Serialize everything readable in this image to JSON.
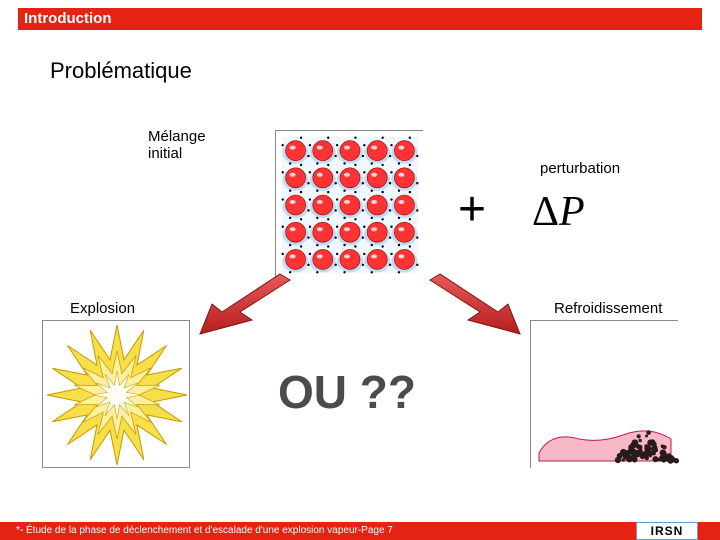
{
  "header": {
    "title": "Introduction"
  },
  "section": {
    "title": "Problématique"
  },
  "labels": {
    "mix": "Mélange\ninitial",
    "perturbation": "perturbation",
    "explosion": "Explosion",
    "cooling": "Refroidissement"
  },
  "symbols": {
    "plus": "+",
    "deltaP": "ΔP"
  },
  "center": {
    "text": "OU ??"
  },
  "footer": {
    "text": "*- Étude de la phase de déclenchement et d'escalade d'une explosion vapeur-Page 7",
    "logo": "IRSN"
  },
  "colors": {
    "accent": "#e42313",
    "explosion_fill": "#f7df4a",
    "explosion_stroke": "#c49a00",
    "ball_fill": "#ff3333",
    "ball_shine": "#ffffff",
    "water_fill": "#bfe0ff",
    "cooling_pink": "#f7b8c7",
    "cooling_dark": "#2b1a1a",
    "arrow_fill": "#d12a2a",
    "arrow_stroke": "#7a1a1a"
  },
  "mix": {
    "rows": 5,
    "cols": 5,
    "ball_r": 10,
    "dot_r": 1.2,
    "bg_water": "#bfe0ff"
  }
}
